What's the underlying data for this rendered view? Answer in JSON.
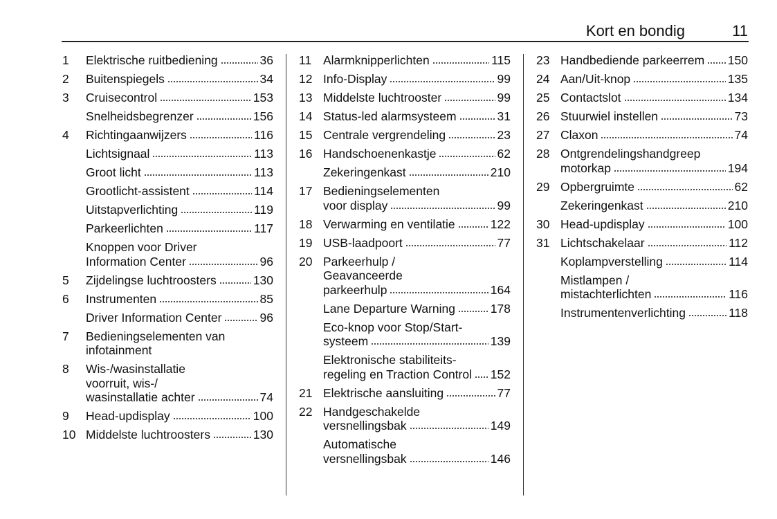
{
  "header": {
    "title": "Kort en bondig",
    "page": "11"
  },
  "columns": [
    [
      {
        "num": "1",
        "lines": [
          "Elektrische ruitbediening"
        ],
        "page": "36"
      },
      {
        "num": "2",
        "lines": [
          "Buitenspiegels"
        ],
        "page": "34"
      },
      {
        "num": "3",
        "lines": [
          "Cruisecontrol"
        ],
        "page": "153"
      },
      {
        "num": "",
        "lines": [
          "Snelheidsbegrenzer"
        ],
        "page": "156"
      },
      {
        "num": "4",
        "lines": [
          "Richtingaanwijzers"
        ],
        "page": "116"
      },
      {
        "num": "",
        "lines": [
          "Lichtsignaal"
        ],
        "page": "113"
      },
      {
        "num": "",
        "lines": [
          "Groot licht"
        ],
        "page": "113"
      },
      {
        "num": "",
        "lines": [
          "Grootlicht-assistent"
        ],
        "page": "114"
      },
      {
        "num": "",
        "lines": [
          "Uitstapverlichting"
        ],
        "page": "119"
      },
      {
        "num": "",
        "lines": [
          "Parkeerlichten"
        ],
        "page": "117"
      },
      {
        "num": "",
        "lines": [
          "Knoppen voor Driver",
          "Information Center"
        ],
        "page": "96"
      },
      {
        "num": "5",
        "lines": [
          "Zijdelingse luchtroosters"
        ],
        "page": "130"
      },
      {
        "num": "6",
        "lines": [
          "Instrumenten"
        ],
        "page": "85"
      },
      {
        "num": "",
        "lines": [
          "Driver Information Center"
        ],
        "page": "96"
      },
      {
        "num": "7",
        "lines": [
          "Bedieningselementen van",
          "infotainment"
        ],
        "page": ""
      },
      {
        "num": "8",
        "lines": [
          "Wis-/wasinstallatie",
          "voorruit, wis-/",
          "wasinstallatie achter"
        ],
        "page": "74"
      },
      {
        "num": "9",
        "lines": [
          "Head-updisplay"
        ],
        "page": "100"
      },
      {
        "num": "10",
        "lines": [
          "Middelste luchtroosters"
        ],
        "page": "130"
      }
    ],
    [
      {
        "num": "11",
        "lines": [
          "Alarmknipperlichten"
        ],
        "page": "115"
      },
      {
        "num": "12",
        "lines": [
          "Info-Display"
        ],
        "page": "99"
      },
      {
        "num": "13",
        "lines": [
          "Middelste luchtrooster"
        ],
        "page": "99"
      },
      {
        "num": "14",
        "lines": [
          "Status-led alarmsysteem"
        ],
        "page": "31"
      },
      {
        "num": "15",
        "lines": [
          "Centrale vergrendeling"
        ],
        "page": "23"
      },
      {
        "num": "16",
        "lines": [
          "Handschoenenkastje"
        ],
        "page": "62"
      },
      {
        "num": "",
        "lines": [
          "Zekeringenkast"
        ],
        "page": "210"
      },
      {
        "num": "17",
        "lines": [
          "Bedieningselementen",
          "voor display"
        ],
        "page": "99"
      },
      {
        "num": "18",
        "lines": [
          "Verwarming en ventilatie"
        ],
        "page": "122"
      },
      {
        "num": "19",
        "lines": [
          "USB-laadpoort"
        ],
        "page": "77"
      },
      {
        "num": "20",
        "lines": [
          "Parkeerhulp /",
          "Geavanceerde",
          "parkeerhulp"
        ],
        "page": "164"
      },
      {
        "num": "",
        "lines": [
          "Lane Departure Warning"
        ],
        "page": "178"
      },
      {
        "num": "",
        "lines": [
          "Eco-knop voor Stop/Start-",
          "systeem"
        ],
        "page": "139"
      },
      {
        "num": "",
        "lines": [
          "Elektronische stabiliteits-",
          "regeling en Traction Control"
        ],
        "page": "152"
      },
      {
        "num": "21",
        "lines": [
          "Elektrische aansluiting"
        ],
        "page": "77"
      },
      {
        "num": "22",
        "lines": [
          "Handgeschakelde",
          "versnellingsbak"
        ],
        "page": "149"
      },
      {
        "num": "",
        "lines": [
          "Automatische",
          "versnellingsbak"
        ],
        "page": "146"
      }
    ],
    [
      {
        "num": "23",
        "lines": [
          "Handbediende parkeerrem"
        ],
        "page": "150"
      },
      {
        "num": "24",
        "lines": [
          "Aan/Uit-knop"
        ],
        "page": "135"
      },
      {
        "num": "25",
        "lines": [
          "Contactslot"
        ],
        "page": "134"
      },
      {
        "num": "26",
        "lines": [
          "Stuurwiel instellen"
        ],
        "page": "73"
      },
      {
        "num": "27",
        "lines": [
          "Claxon"
        ],
        "page": "74"
      },
      {
        "num": "28",
        "lines": [
          "Ontgrendelingshandgreep",
          "motorkap"
        ],
        "page": "194"
      },
      {
        "num": "29",
        "lines": [
          "Opbergruimte"
        ],
        "page": "62"
      },
      {
        "num": "",
        "lines": [
          "Zekeringenkast"
        ],
        "page": "210"
      },
      {
        "num": "30",
        "lines": [
          "Head-updisplay"
        ],
        "page": "100"
      },
      {
        "num": "31",
        "lines": [
          "Lichtschakelaar"
        ],
        "page": "112"
      },
      {
        "num": "",
        "lines": [
          "Koplampverstelling"
        ],
        "page": "114"
      },
      {
        "num": "",
        "lines": [
          "Mistlampen /",
          "mistachterlichten"
        ],
        "page": "116"
      },
      {
        "num": "",
        "lines": [
          "Instrumentenverlichting"
        ],
        "page": "118"
      }
    ]
  ]
}
